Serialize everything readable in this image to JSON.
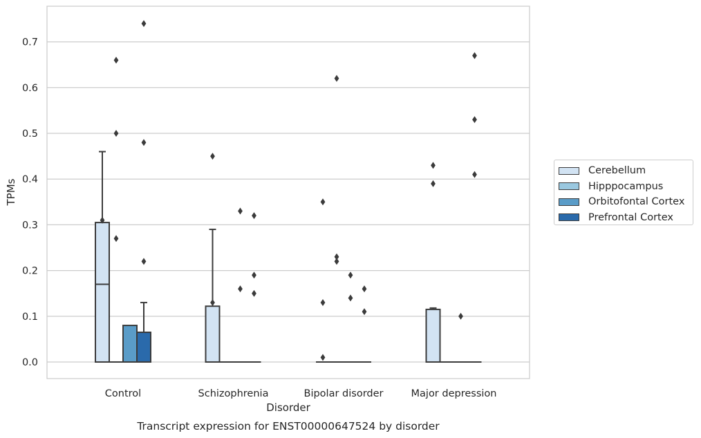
{
  "chart_data": {
    "type": "box",
    "title": "Transcript expression for ENST00000647524 by disorder",
    "xlabel": "Disorder",
    "ylabel": "TPMs",
    "ylim": [
      -0.036,
      0.78
    ],
    "yticks": [
      "0.0",
      "0.1",
      "0.2",
      "0.3",
      "0.4",
      "0.5",
      "0.6",
      "0.7"
    ],
    "grid": true,
    "legend_position": "right",
    "categories": [
      "Control",
      "Schizophrenia",
      "Bipolar disorder",
      "Major depression"
    ],
    "series": [
      {
        "name": "Cerebellum",
        "color": "#d2e3f3",
        "boxes": [
          {
            "min": 0.0,
            "q1": 0.0,
            "median": 0.17,
            "q3": 0.305,
            "max": 0.46,
            "outliers": [
              0.31
            ]
          },
          {
            "min": 0.0,
            "q1": 0.0,
            "median": 0.0,
            "q3": 0.122,
            "max": 0.29,
            "outliers": [
              0.45,
              0.13
            ]
          },
          {
            "min": 0.0,
            "q1": 0.0,
            "median": 0.0,
            "q3": 0.0,
            "max": 0.0,
            "outliers": [
              0.35,
              0.13,
              0.01
            ]
          },
          {
            "min": 0.0,
            "q1": 0.0,
            "median": 0.0,
            "q3": 0.115,
            "max": 0.118,
            "outliers": [
              0.43,
              0.39
            ]
          }
        ]
      },
      {
        "name": "Hipppocampus",
        "color": "#9ac8e0",
        "boxes": [
          {
            "min": 0.0,
            "q1": 0.0,
            "median": 0.0,
            "q3": 0.0,
            "max": 0.0,
            "outliers": [
              0.66,
              0.5,
              0.27
            ]
          },
          {
            "min": 0.0,
            "q1": 0.0,
            "median": 0.0,
            "q3": 0.0,
            "max": 0.0,
            "outliers": []
          },
          {
            "min": 0.0,
            "q1": 0.0,
            "median": 0.0,
            "q3": 0.0,
            "max": 0.0,
            "outliers": [
              0.62,
              0.23,
              0.22
            ]
          },
          {
            "min": 0.0,
            "q1": 0.0,
            "median": 0.0,
            "q3": 0.0,
            "max": 0.0,
            "outliers": []
          }
        ]
      },
      {
        "name": "Orbitofontal Cortex",
        "color": "#5a9cc8",
        "boxes": [
          {
            "min": 0.0,
            "q1": 0.0,
            "median": 0.0,
            "q3": 0.08,
            "max": 0.08,
            "outliers": []
          },
          {
            "min": 0.0,
            "q1": 0.0,
            "median": 0.0,
            "q3": 0.0,
            "max": 0.0,
            "outliers": [
              0.33,
              0.16
            ]
          },
          {
            "min": 0.0,
            "q1": 0.0,
            "median": 0.0,
            "q3": 0.0,
            "max": 0.0,
            "outliers": [
              0.19,
              0.14
            ]
          },
          {
            "min": 0.0,
            "q1": 0.0,
            "median": 0.0,
            "q3": 0.0,
            "max": 0.0,
            "outliers": [
              0.1
            ]
          }
        ]
      },
      {
        "name": "Prefrontal Cortex",
        "color": "#2a6aab",
        "boxes": [
          {
            "min": 0.0,
            "q1": 0.0,
            "median": 0.0,
            "q3": 0.065,
            "max": 0.13,
            "outliers": [
              0.74,
              0.48,
              0.22
            ]
          },
          {
            "min": 0.0,
            "q1": 0.0,
            "median": 0.0,
            "q3": 0.0,
            "max": 0.0,
            "outliers": [
              0.32,
              0.19,
              0.15
            ]
          },
          {
            "min": 0.0,
            "q1": 0.0,
            "median": 0.0,
            "q3": 0.0,
            "max": 0.0,
            "outliers": [
              0.16,
              0.11
            ]
          },
          {
            "min": 0.0,
            "q1": 0.0,
            "median": 0.0,
            "q3": 0.0,
            "max": 0.0,
            "outliers": [
              0.67,
              0.53,
              0.41
            ]
          }
        ]
      }
    ]
  }
}
